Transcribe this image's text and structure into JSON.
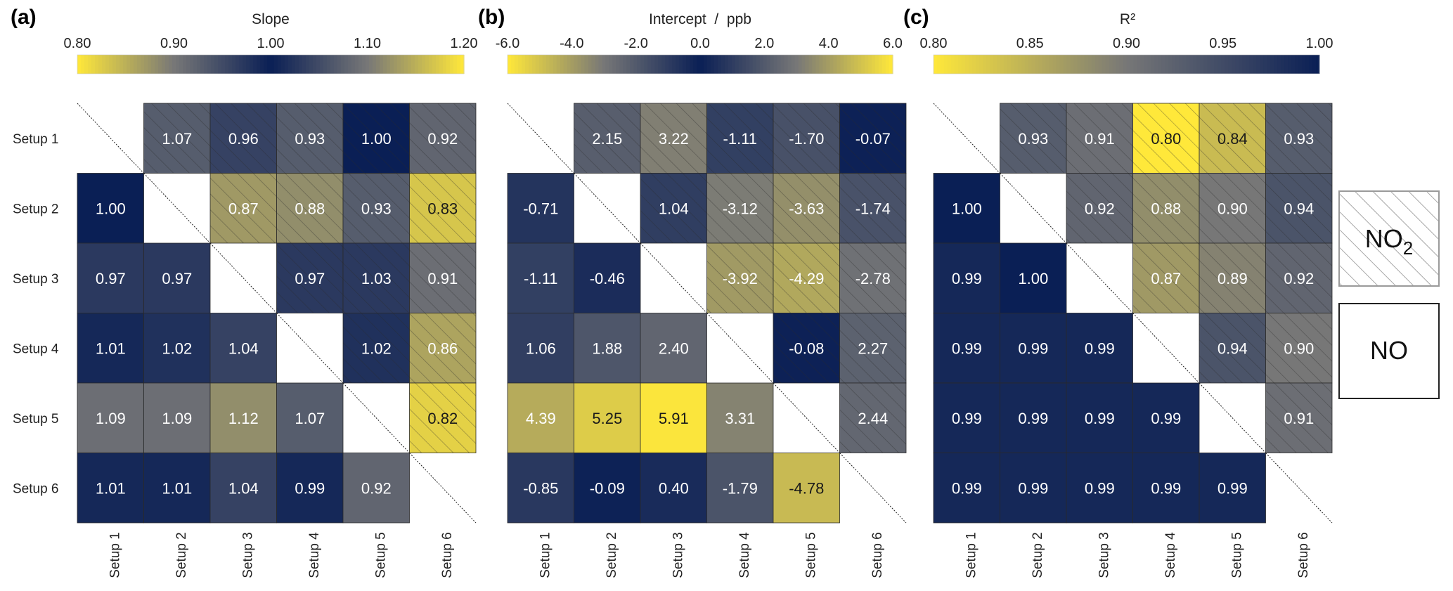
{
  "chart_data": [
    {
      "type": "heatmap",
      "panel_label": "(a)",
      "colorbar_title": "Slope",
      "colorbar_ticks": [
        "0.80",
        "0.90",
        "1.00",
        "1.10",
        "1.20"
      ],
      "colorbar_tick_values": [
        0.8,
        0.9,
        1.0,
        1.1,
        1.2
      ],
      "colormap": "yellow-grey-navy-grey-yellow (diverging, centered)",
      "vmin": 0.8,
      "vmax": 1.2,
      "rows": [
        "Setup 1",
        "Setup 2",
        "Setup 3",
        "Setup 4",
        "Setup 5",
        "Setup 6"
      ],
      "cols": [
        "Setup 1",
        "Setup 2",
        "Setup 3",
        "Setup 4",
        "Setup 5",
        "Setup 6"
      ],
      "values": [
        [
          null,
          1.07,
          0.96,
          0.93,
          1.0,
          0.92
        ],
        [
          1.0,
          null,
          0.87,
          0.88,
          0.93,
          0.83
        ],
        [
          0.97,
          0.97,
          null,
          0.97,
          1.03,
          0.91
        ],
        [
          1.01,
          1.02,
          1.04,
          null,
          1.02,
          0.86
        ],
        [
          1.09,
          1.09,
          1.12,
          1.07,
          null,
          0.82
        ],
        [
          1.01,
          1.01,
          1.04,
          0.99,
          0.92,
          null
        ]
      ],
      "labels": [
        [
          "",
          "1.07",
          "0.96",
          "0.93",
          "1.00",
          "0.92"
        ],
        [
          "1.00",
          "",
          "0.87",
          "0.88",
          "0.93",
          "0.83"
        ],
        [
          "0.97",
          "0.97",
          "",
          "0.97",
          "1.03",
          "0.91"
        ],
        [
          "1.01",
          "1.02",
          "1.04",
          "",
          "1.02",
          "0.86"
        ],
        [
          "1.09",
          "1.09",
          "1.12",
          "1.07",
          "",
          "0.82"
        ],
        [
          "1.01",
          "1.01",
          "1.04",
          "0.99",
          "0.92",
          ""
        ]
      ]
    },
    {
      "type": "heatmap",
      "panel_label": "(b)",
      "colorbar_title": "Intercept  /  ppb",
      "colorbar_ticks": [
        "-6.0",
        "-4.0",
        "-2.0",
        "0.0",
        "2.0",
        "4.0",
        "6.0"
      ],
      "colorbar_tick_values": [
        -6,
        -4,
        -2,
        0,
        2,
        4,
        6
      ],
      "colormap": "yellow-grey-navy-grey-yellow (diverging, centered)",
      "vmin": -6.0,
      "vmax": 6.0,
      "rows": [
        "Setup 1",
        "Setup 2",
        "Setup 3",
        "Setup 4",
        "Setup 5",
        "Setup 6"
      ],
      "cols": [
        "Setup 1",
        "Setup 2",
        "Setup 3",
        "Setup 4",
        "Setup 5",
        "Setup 6"
      ],
      "values": [
        [
          null,
          2.15,
          3.22,
          -1.11,
          -1.7,
          -0.07
        ],
        [
          -0.71,
          null,
          1.04,
          -3.12,
          -3.63,
          -1.74
        ],
        [
          -1.11,
          -0.46,
          null,
          -3.92,
          -4.29,
          -2.78
        ],
        [
          1.06,
          1.88,
          2.4,
          null,
          -0.08,
          2.27
        ],
        [
          4.39,
          5.25,
          5.91,
          3.31,
          null,
          2.44
        ],
        [
          -0.85,
          -0.09,
          0.4,
          -1.79,
          -4.78,
          null
        ]
      ],
      "labels": [
        [
          "",
          "2.15",
          "3.22",
          "-1.11",
          "-1.70",
          "-0.07"
        ],
        [
          "-0.71",
          "",
          "1.04",
          "-3.12",
          "-3.63",
          "-1.74"
        ],
        [
          "-1.11",
          "-0.46",
          "",
          "-3.92",
          "-4.29",
          "-2.78"
        ],
        [
          "1.06",
          "1.88",
          "2.40",
          "",
          "-0.08",
          "2.27"
        ],
        [
          "4.39",
          "5.25",
          "5.91",
          "3.31",
          "",
          "2.44"
        ],
        [
          "-0.85",
          "-0.09",
          "0.40",
          "-1.79",
          "-4.78",
          ""
        ]
      ]
    },
    {
      "type": "heatmap",
      "panel_label": "(c)",
      "colorbar_title": "R²",
      "colorbar_ticks": [
        "0.80",
        "0.85",
        "0.90",
        "0.95",
        "1.00"
      ],
      "colorbar_tick_values": [
        0.8,
        0.85,
        0.9,
        0.95,
        1.0
      ],
      "colormap": "yellow-grey-navy (sequential)",
      "vmin": 0.8,
      "vmax": 1.0,
      "rows": [
        "Setup 1",
        "Setup 2",
        "Setup 3",
        "Setup 4",
        "Setup 5",
        "Setup 6"
      ],
      "cols": [
        "Setup 1",
        "Setup 2",
        "Setup 3",
        "Setup 4",
        "Setup 5",
        "Setup 6"
      ],
      "values": [
        [
          null,
          0.93,
          0.91,
          0.8,
          0.84,
          0.93
        ],
        [
          1.0,
          null,
          0.92,
          0.88,
          0.9,
          0.94
        ],
        [
          0.99,
          1.0,
          null,
          0.87,
          0.89,
          0.92
        ],
        [
          0.99,
          0.99,
          0.99,
          null,
          0.94,
          0.9
        ],
        [
          0.99,
          0.99,
          0.99,
          0.99,
          null,
          0.91
        ],
        [
          0.99,
          0.99,
          0.99,
          0.99,
          0.99,
          null
        ]
      ],
      "labels": [
        [
          "",
          "0.93",
          "0.91",
          "0.80",
          "0.84",
          "0.93"
        ],
        [
          "1.00",
          "",
          "0.92",
          "0.88",
          "0.90",
          "0.94"
        ],
        [
          "0.99",
          "1.00",
          "",
          "0.87",
          "0.89",
          "0.92"
        ],
        [
          "0.99",
          "0.99",
          "0.99",
          "",
          "0.94",
          "0.90"
        ],
        [
          "0.99",
          "0.99",
          "0.99",
          "0.99",
          "",
          "0.91"
        ],
        [
          "0.99",
          "0.99",
          "0.99",
          "0.99",
          "0.99",
          ""
        ]
      ]
    }
  ],
  "legend": {
    "hatched_entry": {
      "label": "NO",
      "subscript": "2",
      "pattern": "hatched",
      "meaning": "upper triangle"
    },
    "plain_entry": {
      "label": "NO",
      "pattern": "plain",
      "meaning": "lower triangle"
    }
  },
  "colors": {
    "yellow": "#ffe83a",
    "grey": "#777777",
    "navy": "#0a1f55",
    "cell_border": "#2a2a2a",
    "hatch": "rgba(40,40,40,0.45)"
  }
}
